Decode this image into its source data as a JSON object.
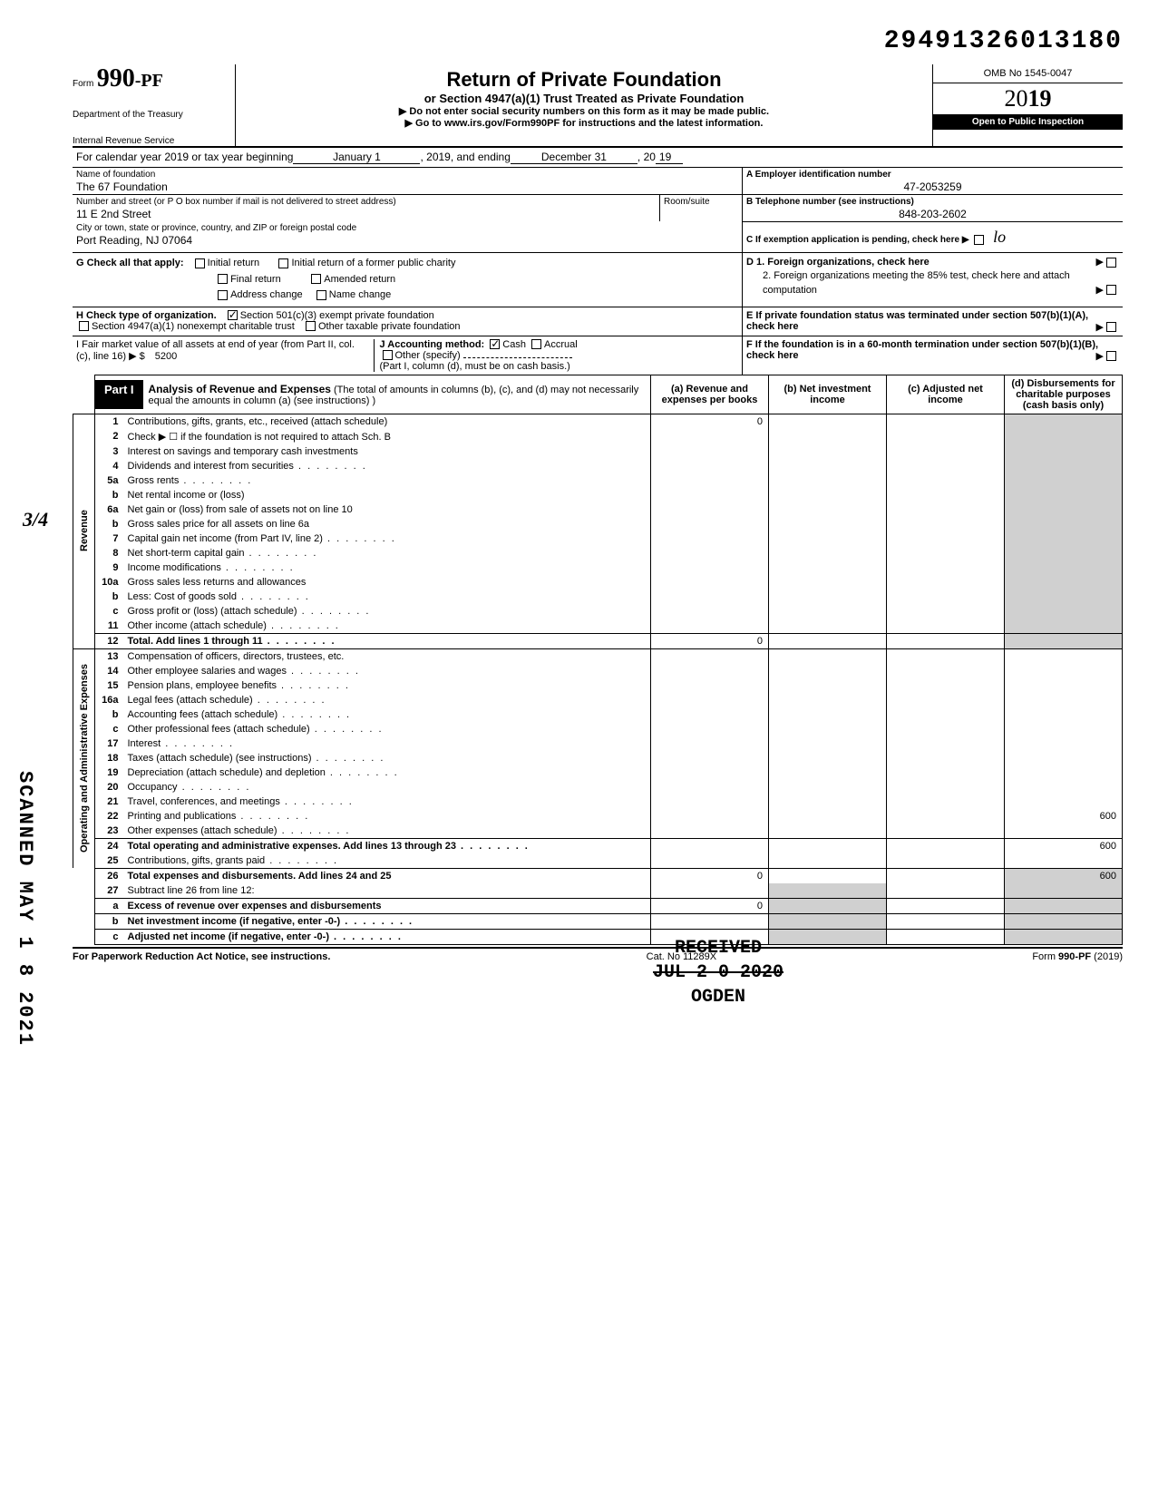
{
  "doc_id": "29491326013180",
  "form": {
    "prefix": "Form",
    "number": "990-PF",
    "dept1": "Department of the Treasury",
    "dept2": "Internal Revenue Service"
  },
  "title": {
    "main": "Return of Private Foundation",
    "sub": "or Section 4947(a)(1) Trust Treated as Private Foundation",
    "warn": "▶ Do not enter social security numbers on this form as it may be made public.",
    "goto": "▶ Go to www.irs.gov/Form990PF for instructions and the latest information."
  },
  "right": {
    "omb": "OMB No 1545-0047",
    "year_prefix": "20",
    "year_suffix": "19",
    "open": "Open to Public Inspection"
  },
  "cal": {
    "label": "For calendar year 2019 or tax year beginning",
    "begin": "January 1",
    "mid": ", 2019, and ending",
    "end": "December 31",
    "y_pre": ", 20",
    "y_val": "19"
  },
  "name": {
    "label": "Name of foundation",
    "value": "The 67 Foundation",
    "addr_label": "Number and street (or P O box number if mail is not delivered to street address)",
    "addr_value": "11 E 2nd Street",
    "room_label": "Room/suite",
    "city_label": "City or town, state or province, country, and ZIP or foreign postal code",
    "city_value": "Port Reading, NJ 07064"
  },
  "box_a": {
    "label": "A  Employer identification number",
    "value": "47-2053259"
  },
  "box_b": {
    "label": "B  Telephone number (see instructions)",
    "value": "848-203-2602"
  },
  "box_c": {
    "label": "C  If exemption application is pending, check here ▶"
  },
  "box_d": {
    "d1": "D  1. Foreign organizations, check here",
    "d2": "2. Foreign organizations meeting the 85% test, check here and attach computation"
  },
  "box_e": "E  If private foundation status was terminated under section 507(b)(1)(A), check here",
  "box_f": "F  If the foundation is in a 60-month termination under section 507(b)(1)(B), check here",
  "g": {
    "label": "G   Check all that apply:",
    "opts": [
      "Initial return",
      "Initial return of a former public charity",
      "Final return",
      "Amended return",
      "Address change",
      "Name change"
    ]
  },
  "h": {
    "label": "H   Check type of organization.",
    "opt1": "Section 501(c)(3) exempt private foundation",
    "opt2": "Section 4947(a)(1) nonexempt charitable trust",
    "opt3": "Other taxable private foundation"
  },
  "i": {
    "label": "I    Fair market value of all assets at end of year (from Part II, col. (c), line 16) ▶ $",
    "value": "5200"
  },
  "j": {
    "label": "J   Accounting method:",
    "cash": "Cash",
    "accrual": "Accrual",
    "other": "Other (specify)",
    "note": "(Part I, column (d), must be on cash basis.)"
  },
  "part1": {
    "tag": "Part I",
    "title": "Analysis of Revenue and Expenses",
    "desc": "(The total of amounts in columns (b), (c), and (d) may not necessarily equal the amounts in column (a) (see instructions) )",
    "cols": {
      "a": "(a) Revenue and expenses per books",
      "b": "(b) Net investment income",
      "c": "(c) Adjusted net income",
      "d": "(d) Disbursements for charitable purposes (cash basis only)"
    }
  },
  "side_labels": {
    "rev": "Revenue",
    "op": "Operating and Administrative Expenses"
  },
  "rows": [
    {
      "n": "1",
      "t": "Contributions, gifts, grants, etc., received (attach schedule)",
      "a": "0"
    },
    {
      "n": "2",
      "t": "Check ▶ ☐ if the foundation is not required to attach Sch. B"
    },
    {
      "n": "3",
      "t": "Interest on savings and temporary cash investments"
    },
    {
      "n": "4",
      "t": "Dividends and interest from securities",
      "dots": true
    },
    {
      "n": "5a",
      "t": "Gross rents",
      "dots": true
    },
    {
      "n": "b",
      "t": "Net rental income or (loss)"
    },
    {
      "n": "6a",
      "t": "Net gain or (loss) from sale of assets not on line 10"
    },
    {
      "n": "b",
      "t": "Gross sales price for all assets on line 6a"
    },
    {
      "n": "7",
      "t": "Capital gain net income (from Part IV, line 2)",
      "dots": true
    },
    {
      "n": "8",
      "t": "Net short-term capital gain",
      "dots": true
    },
    {
      "n": "9",
      "t": "Income modifications",
      "dots": true
    },
    {
      "n": "10a",
      "t": "Gross sales less returns and allowances"
    },
    {
      "n": "b",
      "t": "Less: Cost of goods sold",
      "dots": true
    },
    {
      "n": "c",
      "t": "Gross profit or (loss) (attach schedule)",
      "dots": true
    },
    {
      "n": "11",
      "t": "Other income (attach schedule)",
      "dots": true
    },
    {
      "n": "12",
      "t": "Total. Add lines 1 through 11",
      "dots": true,
      "bold": true,
      "a": "0"
    },
    {
      "n": "13",
      "t": "Compensation of officers, directors, trustees, etc."
    },
    {
      "n": "14",
      "t": "Other employee salaries and wages",
      "dots": true
    },
    {
      "n": "15",
      "t": "Pension plans, employee benefits",
      "dots": true
    },
    {
      "n": "16a",
      "t": "Legal fees (attach schedule)",
      "dots": true
    },
    {
      "n": "b",
      "t": "Accounting fees (attach schedule)",
      "dots": true
    },
    {
      "n": "c",
      "t": "Other professional fees (attach schedule)",
      "dots": true
    },
    {
      "n": "17",
      "t": "Interest",
      "dots": true
    },
    {
      "n": "18",
      "t": "Taxes (attach schedule) (see instructions)",
      "dots": true
    },
    {
      "n": "19",
      "t": "Depreciation (attach schedule) and depletion",
      "dots": true
    },
    {
      "n": "20",
      "t": "Occupancy",
      "dots": true
    },
    {
      "n": "21",
      "t": "Travel, conferences, and meetings",
      "dots": true
    },
    {
      "n": "22",
      "t": "Printing and publications",
      "dots": true,
      "d": "600"
    },
    {
      "n": "23",
      "t": "Other expenses (attach schedule)",
      "dots": true
    },
    {
      "n": "24",
      "t": "Total operating and administrative expenses. Add lines 13 through 23",
      "dots": true,
      "bold": true,
      "d": "600"
    },
    {
      "n": "25",
      "t": "Contributions, gifts, grants paid",
      "dots": true
    },
    {
      "n": "26",
      "t": "Total expenses and disbursements. Add lines 24 and 25",
      "bold": true,
      "a": "0",
      "d": "600"
    },
    {
      "n": "27",
      "t": "Subtract line 26 from line 12:"
    },
    {
      "n": "a",
      "t": "Excess of revenue over expenses and disbursements",
      "bold": true,
      "a": "0"
    },
    {
      "n": "b",
      "t": "Net investment income (if negative, enter -0-)",
      "bold": true,
      "dots": true
    },
    {
      "n": "c",
      "t": "Adjusted net income (if negative, enter -0-)",
      "bold": true,
      "dots": true
    }
  ],
  "footer": {
    "left": "For Paperwork Reduction Act Notice, see instructions.",
    "mid": "Cat. No 11289X",
    "right": "Form 990-PF (2019)"
  },
  "stamps": {
    "scanned": "SCANNED MAY 1 8 2021",
    "received": "RECEIVED",
    "received_date": "JUL 2 0 2020",
    "received_loc": "OGDEN"
  },
  "hand_34": "3/4",
  "hand_lo": "lo",
  "hand_600": "600"
}
